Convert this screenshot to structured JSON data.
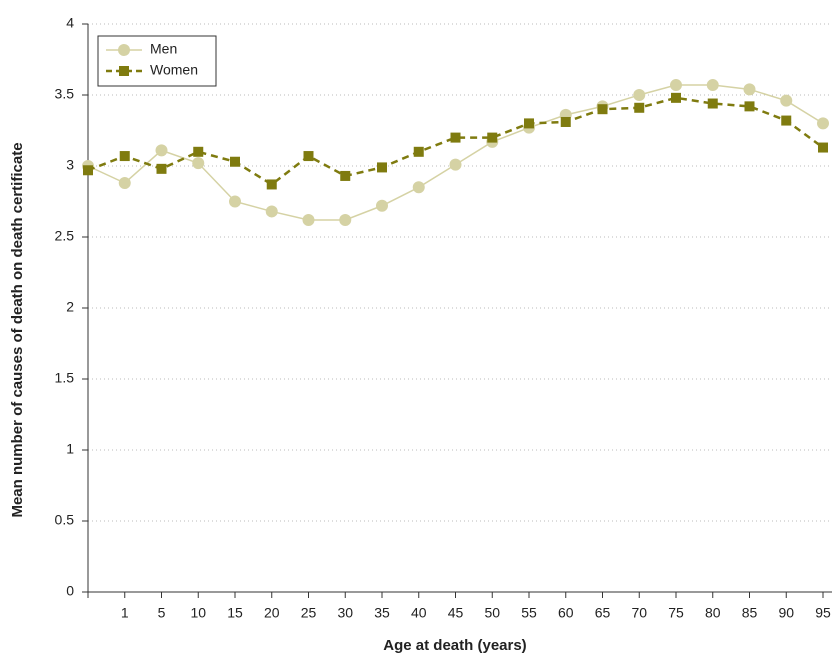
{
  "chart_data": {
    "type": "line",
    "x_label": "Age at death (years)",
    "y_label": "Mean number of causes of death on death certificate",
    "categories": [
      null,
      "1",
      "5",
      "10",
      "15",
      "20",
      "25",
      "30",
      "35",
      "40",
      "45",
      "50",
      "55",
      "60",
      "65",
      "70",
      "75",
      "80",
      "85",
      "90",
      "95"
    ],
    "series": [
      {
        "name": "Men",
        "color": "#d5d2a4",
        "dashed": false,
        "marker": "circle",
        "values": [
          3.0,
          2.88,
          3.11,
          3.02,
          2.75,
          2.68,
          2.62,
          2.62,
          2.72,
          2.85,
          3.01,
          3.17,
          3.27,
          3.36,
          3.42,
          3.5,
          3.57,
          3.57,
          3.54,
          3.46,
          3.3
        ]
      },
      {
        "name": "Women",
        "color": "#7f7b0f",
        "dashed": true,
        "marker": "square",
        "values": [
          2.97,
          3.07,
          2.98,
          3.1,
          3.03,
          2.87,
          3.07,
          2.93,
          2.99,
          3.1,
          3.2,
          3.2,
          3.3,
          3.31,
          3.4,
          3.41,
          3.48,
          3.44,
          3.42,
          3.32,
          3.13
        ]
      }
    ],
    "ylim": [
      0,
      4
    ],
    "yticks": [
      0,
      0.5,
      1,
      1.5,
      2,
      2.5,
      3,
      3.5,
      4
    ],
    "grid": true,
    "legend": "top-left"
  }
}
